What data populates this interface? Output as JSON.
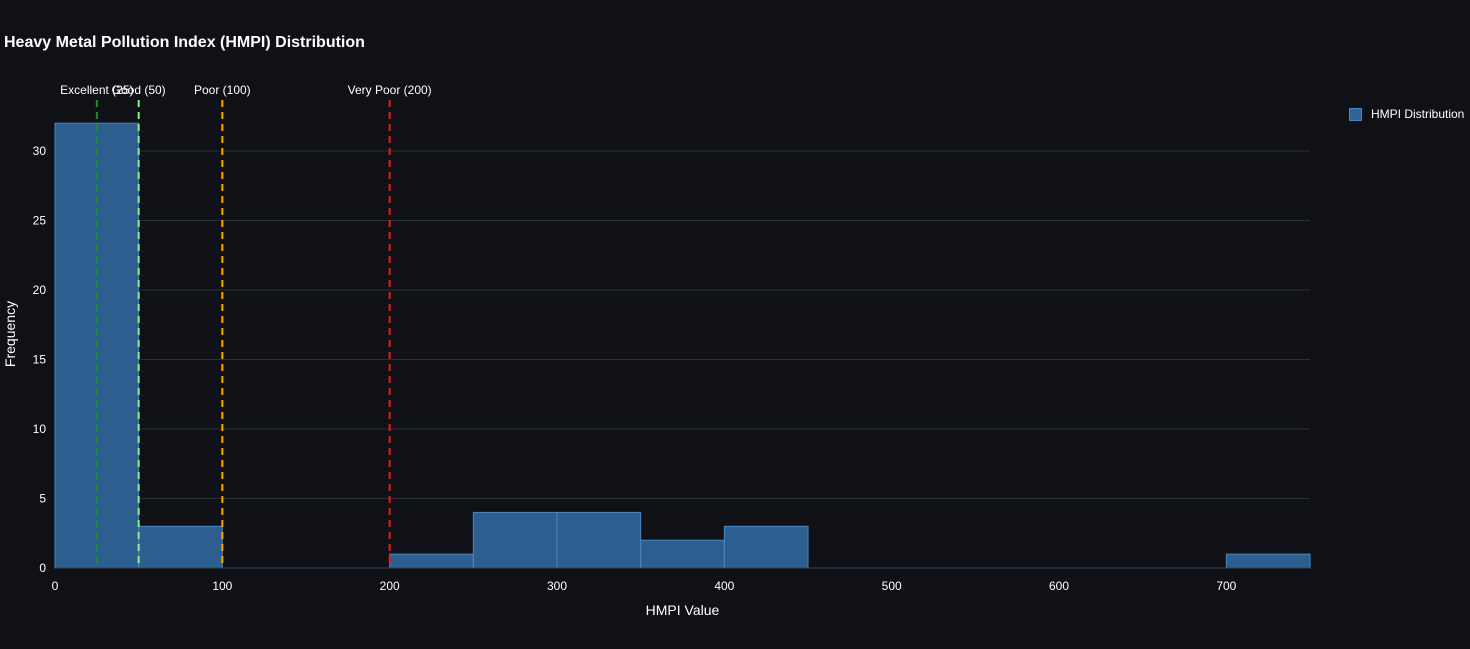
{
  "chart_data": {
    "type": "bar",
    "title": "Heavy Metal Pollution Index (HMPI) Distribution",
    "xlabel": "HMPI Value",
    "ylabel": "Frequency",
    "xlim": [
      0,
      750
    ],
    "ylim": [
      0,
      33
    ],
    "x_ticks": [
      0,
      100,
      200,
      300,
      400,
      500,
      600,
      700
    ],
    "y_ticks": [
      0,
      5,
      10,
      15,
      20,
      25,
      30
    ],
    "grid": true,
    "legend_position": "top-right",
    "series": [
      {
        "name": "HMPI Distribution",
        "color": "#2e6496",
        "bins": [
          {
            "x0": 0,
            "x1": 50,
            "count": 32
          },
          {
            "x0": 50,
            "x1": 100,
            "count": 3
          },
          {
            "x0": 100,
            "x1": 150,
            "count": 0
          },
          {
            "x0": 150,
            "x1": 200,
            "count": 0
          },
          {
            "x0": 200,
            "x1": 250,
            "count": 1
          },
          {
            "x0": 250,
            "x1": 300,
            "count": 4
          },
          {
            "x0": 300,
            "x1": 350,
            "count": 4
          },
          {
            "x0": 350,
            "x1": 400,
            "count": 2
          },
          {
            "x0": 400,
            "x1": 450,
            "count": 3
          },
          {
            "x0": 450,
            "x1": 500,
            "count": 0
          },
          {
            "x0": 500,
            "x1": 550,
            "count": 0
          },
          {
            "x0": 550,
            "x1": 600,
            "count": 0
          },
          {
            "x0": 600,
            "x1": 650,
            "count": 0
          },
          {
            "x0": 650,
            "x1": 700,
            "count": 0
          },
          {
            "x0": 700,
            "x1": 750,
            "count": 1
          }
        ]
      }
    ],
    "reference_lines": [
      {
        "x": 25,
        "label": "Excellent (25)",
        "color": "#1e8c2e"
      },
      {
        "x": 50,
        "label": "Good (50)",
        "color": "#90ee90"
      },
      {
        "x": 100,
        "label": "Poor (100)",
        "color": "#ffa500"
      },
      {
        "x": 200,
        "label": "Very Poor (200)",
        "color": "#e01e1e"
      }
    ]
  }
}
